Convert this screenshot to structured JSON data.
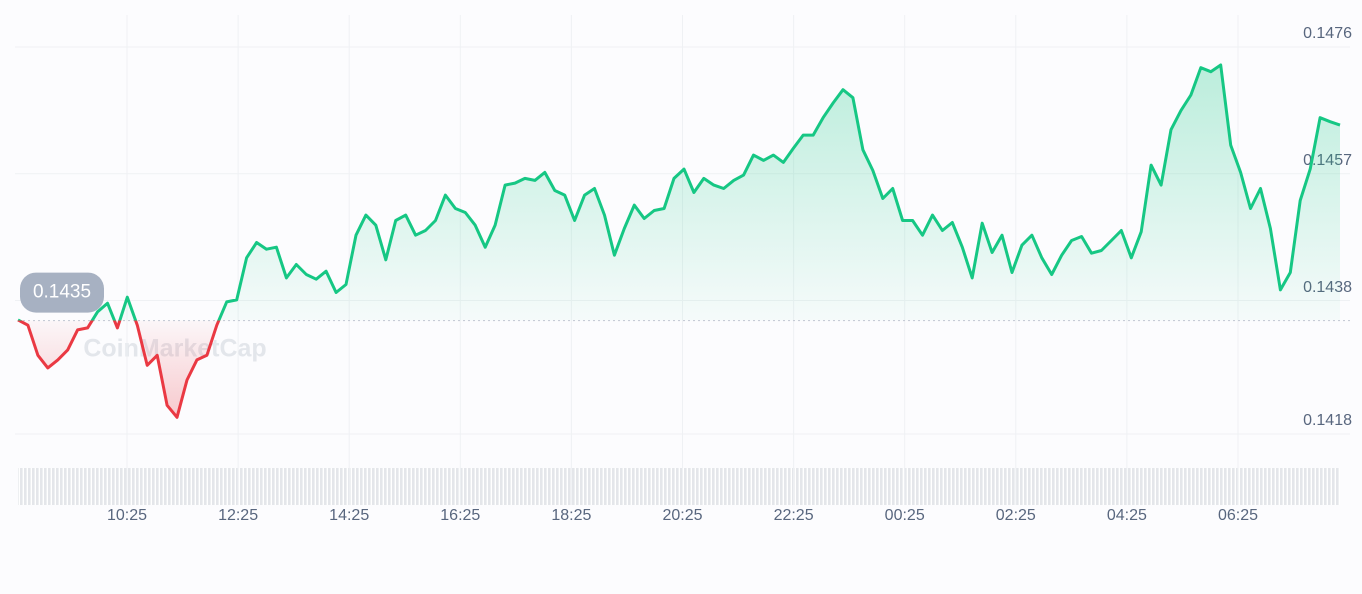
{
  "chart_data": {
    "type": "line",
    "watermark": "CoinMarketCap",
    "baseline": 0.1435,
    "color_up": "#16c784",
    "color_down": "#ea3943",
    "ylim": [
      0.1418,
      0.1476
    ],
    "yticks": [
      0.1476,
      0.1457,
      0.1438,
      0.1418
    ],
    "grid": true,
    "xtick_labels": [
      "10:25",
      "12:25",
      "14:25",
      "16:25",
      "18:25",
      "20:25",
      "22:25",
      "00:25",
      "02:25",
      "04:25",
      "06:25"
    ],
    "values": [
      0.14351,
      0.14343,
      0.14298,
      0.14279,
      0.14291,
      0.14306,
      0.14336,
      0.14339,
      0.14363,
      0.14376,
      0.14339,
      0.14385,
      0.14343,
      0.14283,
      0.14298,
      0.14223,
      0.14205,
      0.14261,
      0.14291,
      0.14298,
      0.14343,
      0.14378,
      0.14381,
      0.14444,
      0.14467,
      0.14457,
      0.1446,
      0.14414,
      0.14434,
      0.14419,
      0.14412,
      0.14424,
      0.14392,
      0.14404,
      0.14478,
      0.14508,
      0.14493,
      0.14441,
      0.145,
      0.14508,
      0.14478,
      0.14485,
      0.145,
      0.14538,
      0.14518,
      0.14512,
      0.14493,
      0.1446,
      0.14493,
      0.14553,
      0.14556,
      0.14563,
      0.1456,
      0.14572,
      0.14545,
      0.14538,
      0.145,
      0.14538,
      0.14548,
      0.14508,
      0.14448,
      0.14488,
      0.14523,
      0.14503,
      0.14515,
      0.14518,
      0.14563,
      0.14577,
      0.14542,
      0.14563,
      0.14553,
      0.14548,
      0.1456,
      0.14568,
      0.14598,
      0.1459,
      0.14598,
      0.14587,
      0.14608,
      0.14628,
      0.14628,
      0.14654,
      0.14676,
      0.14696,
      0.14684,
      0.14606,
      0.14575,
      0.14533,
      0.14548,
      0.145,
      0.145,
      0.14478,
      0.14508,
      0.14485,
      0.14497,
      0.1446,
      0.14414,
      0.14496,
      0.14452,
      0.14478,
      0.14422,
      0.14463,
      0.14478,
      0.14444,
      0.14419,
      0.14448,
      0.1447,
      0.14476,
      0.14451,
      0.14455,
      0.1447,
      0.14485,
      0.14444,
      0.14483,
      0.14583,
      0.14553,
      0.14636,
      0.14665,
      0.14688,
      0.14729,
      0.14723,
      0.14733,
      0.14613,
      0.14572,
      0.14518,
      0.14548,
      0.14488,
      0.14396,
      0.14422,
      0.1453,
      0.14577,
      0.14654,
      0.14648,
      0.14643
    ]
  }
}
